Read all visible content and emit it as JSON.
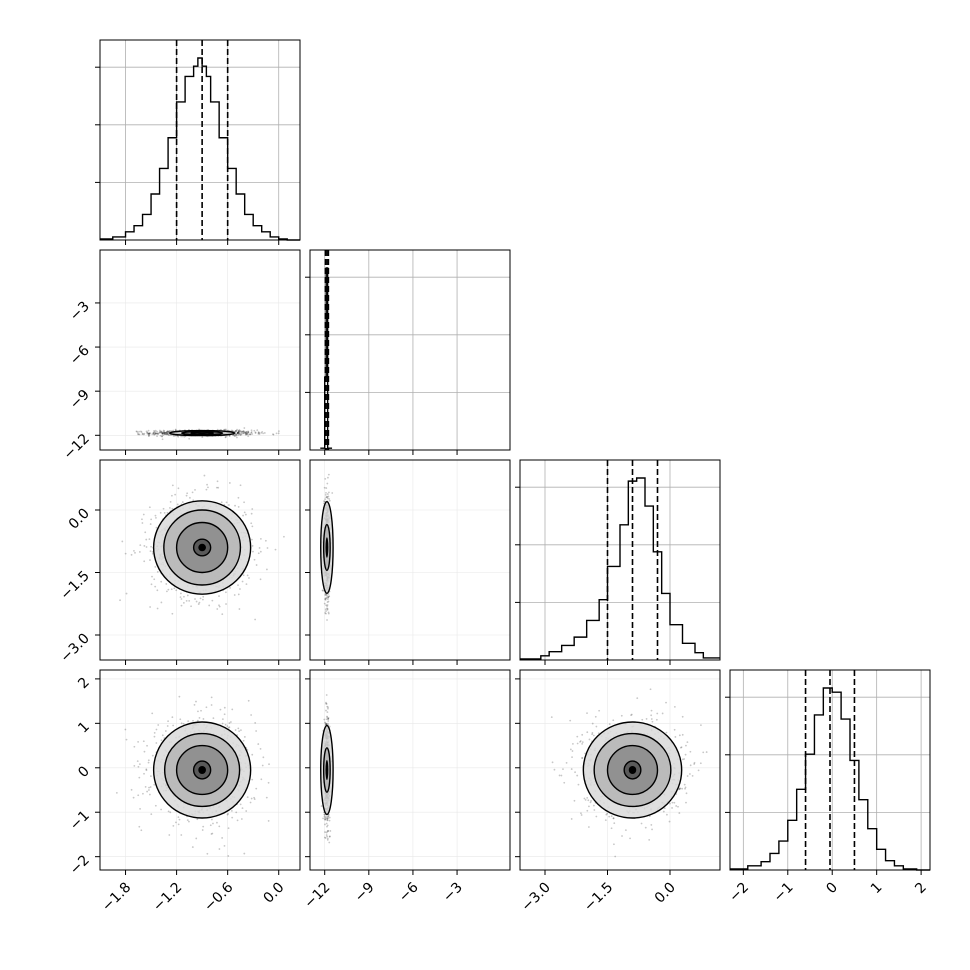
{
  "chart_data": {
    "type": "corner",
    "title": "",
    "n_params": 4,
    "colors": {
      "line": "#000000",
      "grid": "#b0b0b0",
      "scatter": "#000000"
    },
    "grid": true,
    "quantiles_dashed": true,
    "params": [
      {
        "index": 0,
        "label": "",
        "range": [
          -2.1,
          0.25
        ],
        "ticks": [
          -1.8,
          -1.2,
          -0.6,
          0.0
        ],
        "tick_labels": [
          "−1.8",
          "−1.2",
          "−0.6",
          "0.0"
        ],
        "quantiles": [
          -1.2,
          -0.9,
          -0.6
        ],
        "center": -0.9,
        "sigma": 0.3
      },
      {
        "index": 1,
        "label": "",
        "range": [
          -13.0,
          0.6
        ],
        "ticks": [
          -12,
          -9,
          -6,
          -3
        ],
        "tick_labels": [
          "−12",
          "−9",
          "−6",
          "−3"
        ],
        "quantiles": [
          -11.95,
          -11.85,
          -11.75
        ],
        "center": -11.85,
        "sigma": 0.1
      },
      {
        "index": 2,
        "label": "",
        "range": [
          -3.6,
          1.2
        ],
        "ticks": [
          -3.0,
          -1.5,
          0.0
        ],
        "tick_labels": [
          "−3.0",
          "−1.5",
          "0.0"
        ],
        "quantiles": [
          -1.5,
          -0.9,
          -0.3
        ],
        "center": -0.9,
        "sigma": 0.6
      },
      {
        "index": 3,
        "label": "",
        "range": [
          -2.3,
          2.2
        ],
        "ticks": [
          -2,
          -1,
          0,
          1,
          2
        ],
        "tick_labels": [
          "−2",
          "−1",
          "0",
          "1",
          "2"
        ],
        "quantiles": [
          -0.6,
          -0.05,
          0.5
        ],
        "center": -0.05,
        "sigma": 0.55
      }
    ],
    "histograms": [
      {
        "param": 0,
        "edges": [
          -2.1,
          -1.95,
          -1.8,
          -1.7,
          -1.6,
          -1.5,
          -1.4,
          -1.3,
          -1.2,
          -1.1,
          -1.0,
          -0.95,
          -0.9,
          -0.85,
          -0.8,
          -0.7,
          -0.6,
          -0.5,
          -0.4,
          -0.3,
          -0.2,
          -0.1,
          0.0,
          0.1,
          0.25
        ],
        "counts": [
          1,
          3,
          8,
          14,
          25,
          45,
          70,
          100,
          135,
          160,
          170,
          178,
          170,
          160,
          135,
          100,
          70,
          45,
          25,
          14,
          8,
          3,
          1,
          0
        ]
      },
      {
        "param": 1,
        "edges": [
          -12.3,
          -12.0,
          -11.9,
          -11.8,
          -11.5
        ],
        "counts": [
          1,
          40,
          100,
          1
        ]
      },
      {
        "param": 2,
        "edges": [
          -3.6,
          -3.1,
          -2.9,
          -2.6,
          -2.3,
          -2.0,
          -1.7,
          -1.5,
          -1.2,
          -1.0,
          -0.8,
          -0.6,
          -0.4,
          -0.2,
          0.0,
          0.3,
          0.6,
          0.8,
          1.2
        ],
        "counts": [
          1,
          4,
          8,
          14,
          22,
          38,
          58,
          90,
          130,
          172,
          175,
          148,
          104,
          64,
          34,
          16,
          7,
          2
        ]
      },
      {
        "param": 3,
        "edges": [
          -2.3,
          -1.9,
          -1.6,
          -1.4,
          -1.2,
          -1.0,
          -0.8,
          -0.6,
          -0.4,
          -0.2,
          0.0,
          0.2,
          0.4,
          0.6,
          0.8,
          1.0,
          1.2,
          1.4,
          1.6,
          1.9,
          2.2
        ],
        "counts": [
          1,
          4,
          8,
          16,
          28,
          48,
          78,
          112,
          150,
          176,
          172,
          146,
          106,
          68,
          40,
          20,
          9,
          4,
          1,
          0
        ]
      }
    ],
    "pairs": [
      {
        "x": 0,
        "y": 1,
        "ellipse_half_widths": [
          {
            "level": 0.5,
            "hx": 0.13,
            "hy": 0.06
          },
          {
            "level": 1.0,
            "hx": 0.24,
            "hy": 0.1
          },
          {
            "level": 1.5,
            "hx": 0.38,
            "hy": 0.17
          }
        ]
      },
      {
        "x": 0,
        "y": 2,
        "ellipse_half_widths": [
          {
            "level": 0.5,
            "hx": 0.1,
            "hy": 0.2
          },
          {
            "level": 1.0,
            "hx": 0.3,
            "hy": 0.6
          },
          {
            "level": 1.5,
            "hx": 0.45,
            "hy": 0.9
          },
          {
            "level": 2.0,
            "hx": 0.57,
            "hy": 1.12
          }
        ]
      },
      {
        "x": 1,
        "y": 2,
        "ellipse_half_widths": [
          {
            "level": 1.0,
            "hx": 0.22,
            "hy": 0.55
          },
          {
            "level": 2.0,
            "hx": 0.42,
            "hy": 1.1
          }
        ]
      },
      {
        "x": 0,
        "y": 3,
        "ellipse_half_widths": [
          {
            "level": 0.5,
            "hx": 0.1,
            "hy": 0.2
          },
          {
            "level": 1.0,
            "hx": 0.3,
            "hy": 0.55
          },
          {
            "level": 1.5,
            "hx": 0.44,
            "hy": 0.82
          },
          {
            "level": 2.0,
            "hx": 0.57,
            "hy": 1.08
          }
        ]
      },
      {
        "x": 1,
        "y": 3,
        "ellipse_half_widths": [
          {
            "level": 1.0,
            "hx": 0.22,
            "hy": 0.5
          },
          {
            "level": 2.0,
            "hx": 0.42,
            "hy": 1.0
          }
        ]
      },
      {
        "x": 2,
        "y": 3,
        "ellipse_half_widths": [
          {
            "level": 0.5,
            "hx": 0.2,
            "hy": 0.2
          },
          {
            "level": 1.0,
            "hx": 0.6,
            "hy": 0.55
          },
          {
            "level": 1.5,
            "hx": 0.92,
            "hy": 0.82
          },
          {
            "level": 2.0,
            "hx": 1.18,
            "hy": 1.08
          }
        ]
      }
    ]
  }
}
